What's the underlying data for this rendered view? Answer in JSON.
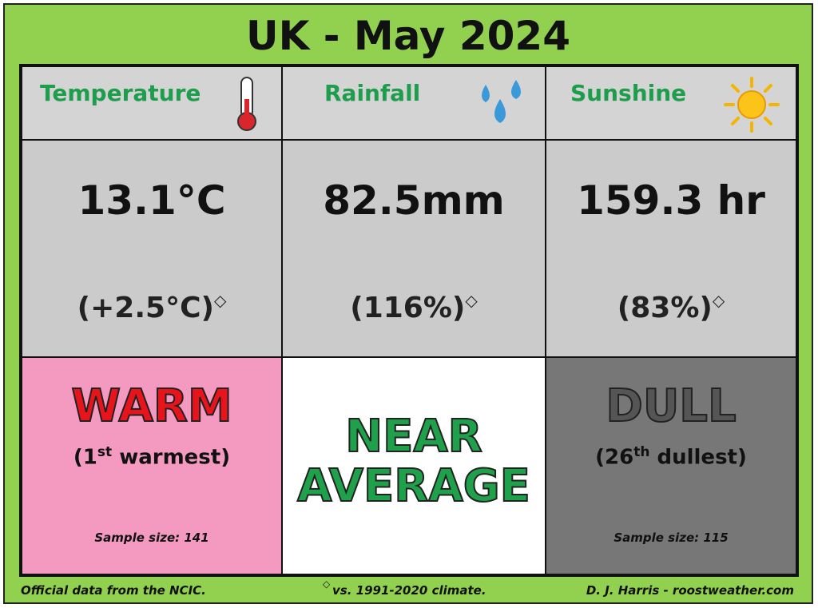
{
  "header": {
    "title": "UK - May 2024"
  },
  "columns": [
    {
      "heading": "Temperature",
      "value": "13.1°C",
      "anomaly": "(+2.5°C)",
      "marker": "◇",
      "verdict": [
        "WARM"
      ],
      "rank": {
        "before": "(1",
        "suffix": "st",
        "after": " warmest)"
      },
      "sample": "Sample size: 141"
    },
    {
      "heading": "Rainfall",
      "value": "82.5mm",
      "anomaly": "(116%)",
      "marker": "◇",
      "verdict": [
        "NEAR",
        "AVERAGE"
      ]
    },
    {
      "heading": "Sunshine",
      "value": "159.3 hr",
      "anomaly": "(83%)",
      "marker": "◇",
      "verdict": [
        "DULL"
      ],
      "rank": {
        "before": "(26",
        "suffix": "th",
        "after": " dullest)"
      },
      "sample": "Sample size: 115"
    }
  ],
  "footer": {
    "source": "Official data from the NCIC.",
    "marker": "◇",
    "climate": "vs. 1991-2020 climate.",
    "credit": "D. J. Harris - roostweather.com"
  }
}
